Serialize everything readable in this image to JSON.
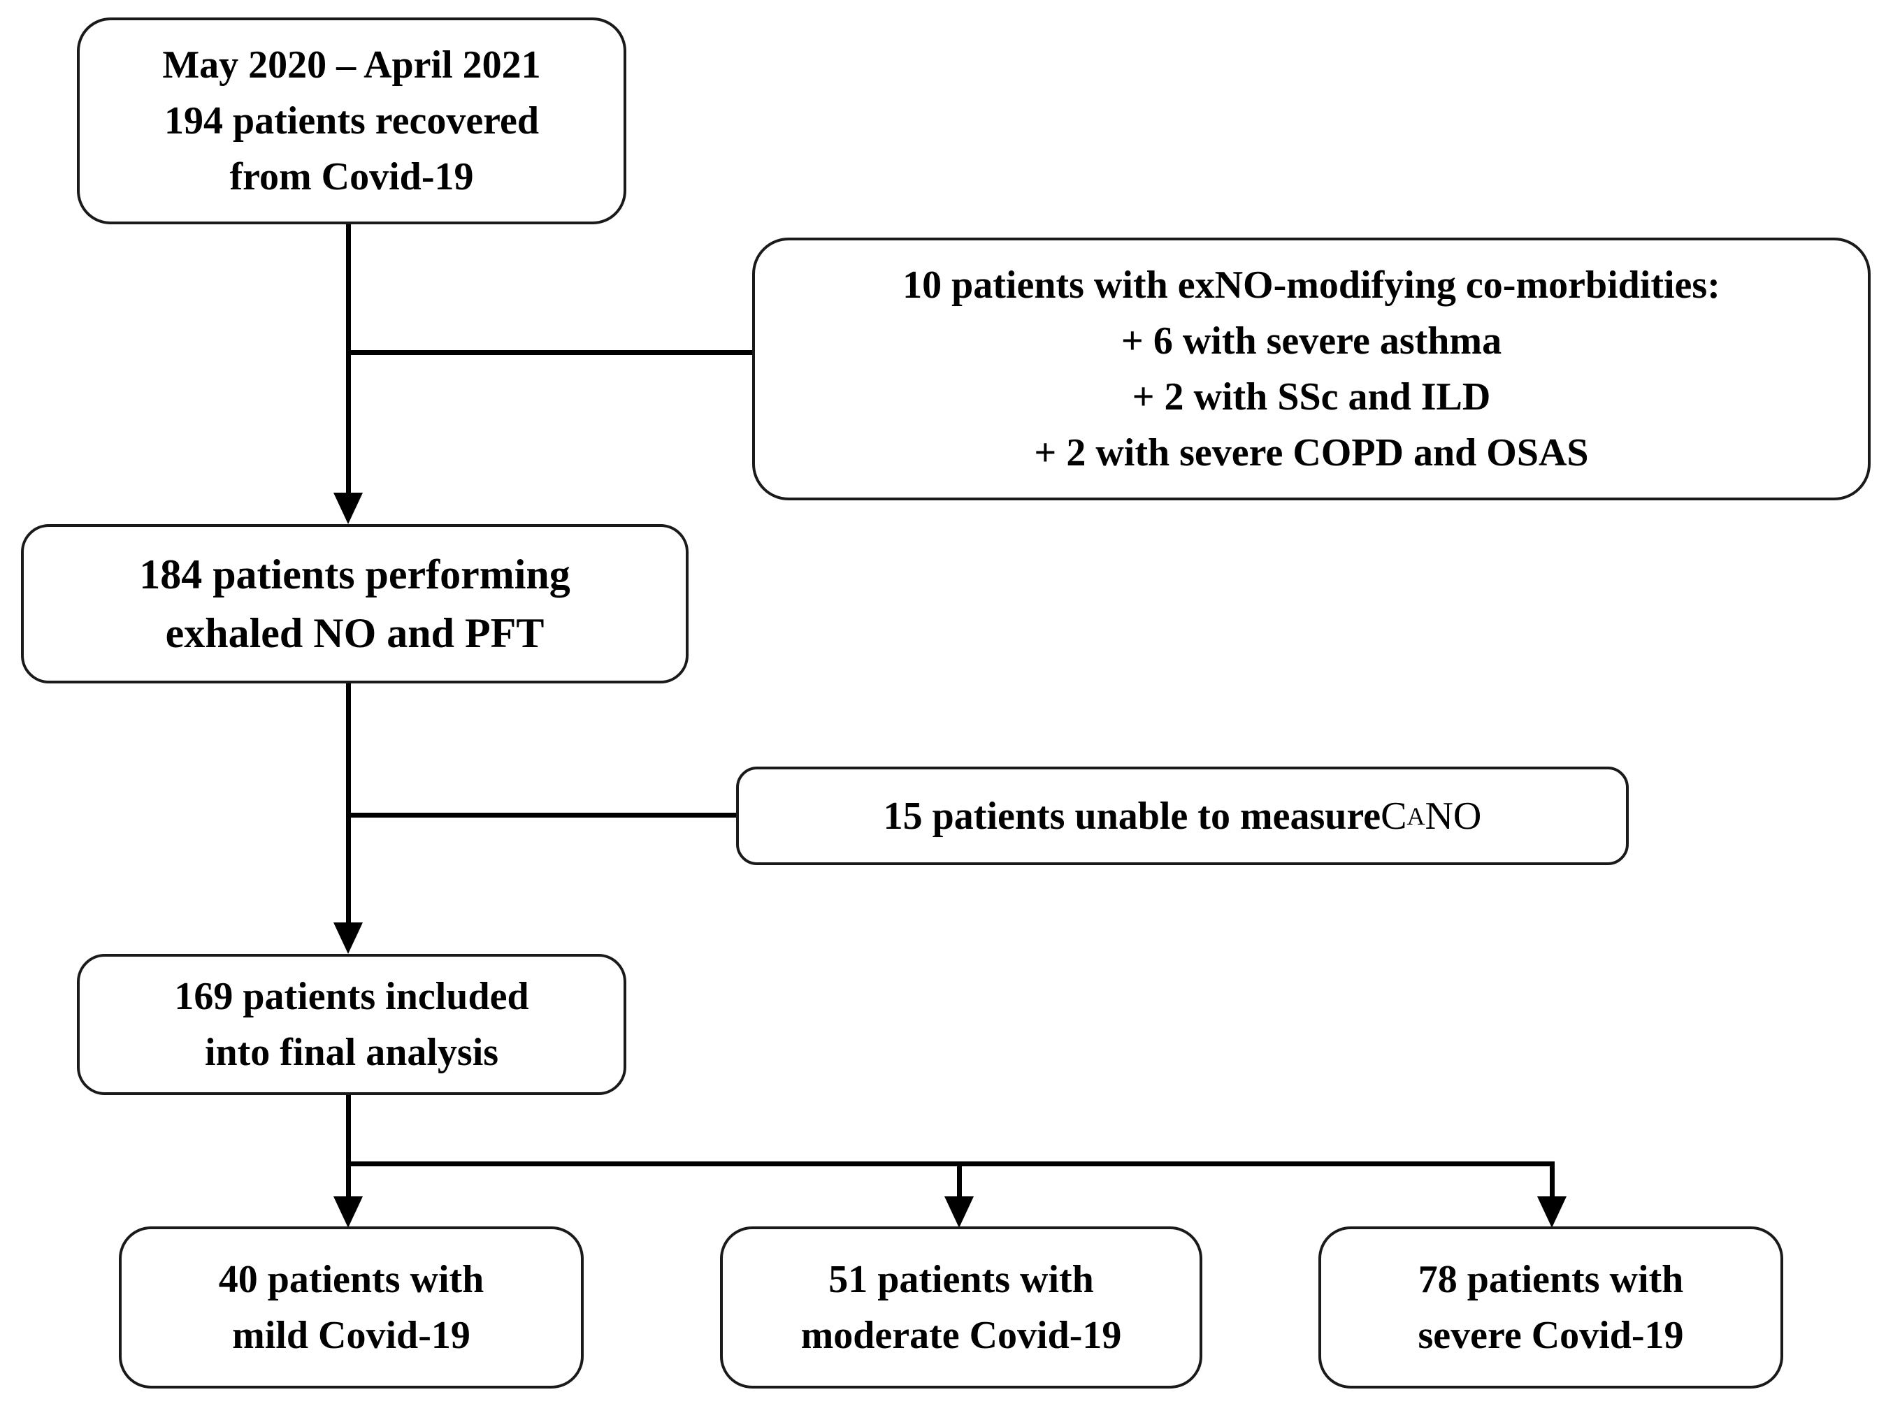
{
  "figure": {
    "type": "patient-flow-diagram",
    "background_color": "#ffffff",
    "line_color": "#000000",
    "box_border_color": "#1a1a1a",
    "nodes": {
      "enrollment": {
        "lines": [
          "May 2020 – April 2021",
          "194 patients recovered",
          "from Covid-19"
        ]
      },
      "excluded_comorbidities": {
        "lines": [
          "10 patients with exNO-modifying co-morbidities:",
          "+ 6 with severe asthma",
          "+ 2 with SSc and ILD",
          "+ 2 with severe COPD and OSAS"
        ]
      },
      "exhaled_no_pft": {
        "lines": [
          "184 patients performing",
          "exhaled NO and PFT"
        ]
      },
      "unable_cano": {
        "bold_prefix": "15 patients unable to measure ",
        "symbol_base": "C",
        "symbol_subscript": "A",
        "symbol_suffix": "NO"
      },
      "final_analysis": {
        "lines": [
          "169 patients included",
          "into final analysis"
        ]
      },
      "mild_group": {
        "lines": [
          "40 patients with",
          "mild Covid-19"
        ]
      },
      "moderate_group": {
        "lines": [
          "51 patients with",
          "moderate Covid-19"
        ]
      },
      "severe_group": {
        "lines": [
          "78 patients with",
          "severe Covid-19"
        ]
      }
    }
  }
}
